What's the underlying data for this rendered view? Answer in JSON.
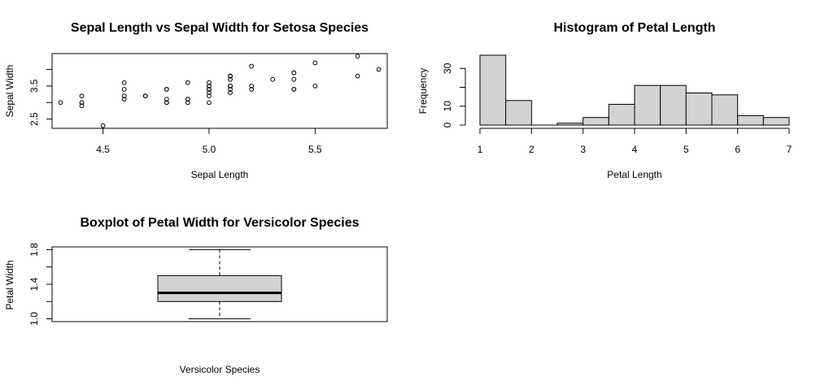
{
  "chart_data": [
    {
      "type": "scatter",
      "title": "Sepal Length vs Sepal Width for Setosa Species",
      "xlabel": "Sepal Length",
      "ylabel": "Sepal Width",
      "xlim": [
        4.26,
        5.84
      ],
      "ylim": [
        2.22,
        4.48
      ],
      "xticks": [
        "4.5",
        "5.0",
        "5.5"
      ],
      "yticks": [
        "2.5",
        "3.5"
      ],
      "x": [
        5.1,
        4.9,
        4.7,
        4.6,
        5.0,
        5.4,
        4.6,
        5.0,
        4.4,
        4.9,
        5.4,
        4.8,
        4.8,
        4.3,
        5.8,
        5.7,
        5.4,
        5.1,
        5.7,
        5.1,
        5.4,
        5.1,
        4.6,
        5.1,
        4.8,
        5.0,
        5.0,
        5.2,
        5.2,
        4.7,
        4.8,
        5.4,
        5.2,
        5.5,
        4.9,
        5.0,
        5.5,
        4.9,
        4.4,
        5.1,
        5.0,
        4.5,
        4.4,
        5.0,
        5.1,
        4.8,
        5.1,
        4.6,
        5.3,
        5.0
      ],
      "y": [
        3.5,
        3.0,
        3.2,
        3.1,
        3.6,
        3.9,
        3.4,
        3.4,
        2.9,
        3.1,
        3.7,
        3.4,
        3.0,
        3.0,
        4.0,
        4.4,
        3.9,
        3.5,
        3.8,
        3.8,
        3.4,
        3.7,
        3.6,
        3.3,
        3.4,
        3.0,
        3.4,
        3.5,
        3.4,
        3.2,
        3.1,
        3.4,
        4.1,
        4.2,
        3.1,
        3.2,
        3.5,
        3.6,
        3.0,
        3.4,
        3.5,
        2.3,
        3.2,
        3.5,
        3.8,
        3.0,
        3.8,
        3.2,
        3.7,
        3.3
      ]
    },
    {
      "type": "bar",
      "title": "Histogram of Petal Length",
      "xlabel": "Petal Length",
      "ylabel": "Frequency",
      "bins": [
        [
          1.0,
          1.5
        ],
        [
          1.5,
          2.0
        ],
        [
          2.0,
          2.5
        ],
        [
          2.5,
          3.0
        ],
        [
          3.0,
          3.5
        ],
        [
          3.5,
          4.0
        ],
        [
          4.0,
          4.5
        ],
        [
          4.5,
          5.0
        ],
        [
          5.0,
          5.5
        ],
        [
          5.5,
          6.0
        ],
        [
          6.0,
          6.5
        ],
        [
          6.5,
          7.0
        ]
      ],
      "values": [
        37,
        13,
        0,
        1,
        4,
        11,
        21,
        21,
        17,
        16,
        5,
        4
      ],
      "xlim": [
        1,
        7
      ],
      "ylim": [
        0,
        37
      ],
      "xticks": [
        "1",
        "2",
        "3",
        "4",
        "5",
        "6",
        "7"
      ],
      "yticks": [
        "0",
        "10",
        "30"
      ]
    },
    {
      "type": "box",
      "title": "Boxplot of Petal Width for Versicolor Species",
      "xlabel": "Versicolor Species",
      "ylabel": "Petal Width",
      "ylim": [
        0.968,
        1.832
      ],
      "yticks": [
        "1.0",
        "1.4",
        "1.8"
      ],
      "min": 1.0,
      "q1": 1.2,
      "median": 1.3,
      "q3": 1.5,
      "max": 1.8
    }
  ]
}
